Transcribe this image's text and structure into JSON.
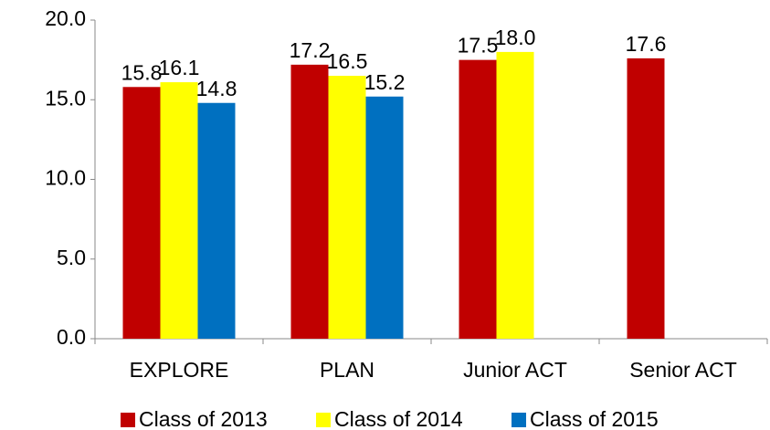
{
  "chart_data": {
    "type": "bar",
    "categories": [
      "EXPLORE",
      "PLAN",
      "Junior ACT",
      "Senior ACT"
    ],
    "series": [
      {
        "name": "Class of 2013",
        "color": "#c00000",
        "values": [
          15.8,
          17.2,
          17.5,
          17.6
        ],
        "value_labels": [
          "15.8",
          "17.2",
          "17.5",
          "17.6"
        ]
      },
      {
        "name": "Class of 2014",
        "color": "#ffff00",
        "values": [
          16.1,
          16.5,
          18.0,
          null
        ],
        "value_labels": [
          "16.1",
          "16.5",
          "18.0",
          null
        ]
      },
      {
        "name": "Class of 2015",
        "color": "#0070c0",
        "values": [
          14.8,
          15.2,
          null,
          null
        ],
        "value_labels": [
          "14.8",
          "15.2",
          null,
          null
        ]
      }
    ],
    "ylim": [
      0,
      20
    ],
    "yticks": [
      {
        "value": 0,
        "label": "0.0"
      },
      {
        "value": 5,
        "label": "5.0"
      },
      {
        "value": 10,
        "label": "10.0"
      },
      {
        "value": 15,
        "label": "15.0"
      },
      {
        "value": 20,
        "label": "20.0"
      }
    ],
    "grid": false,
    "legend": "bottom"
  }
}
